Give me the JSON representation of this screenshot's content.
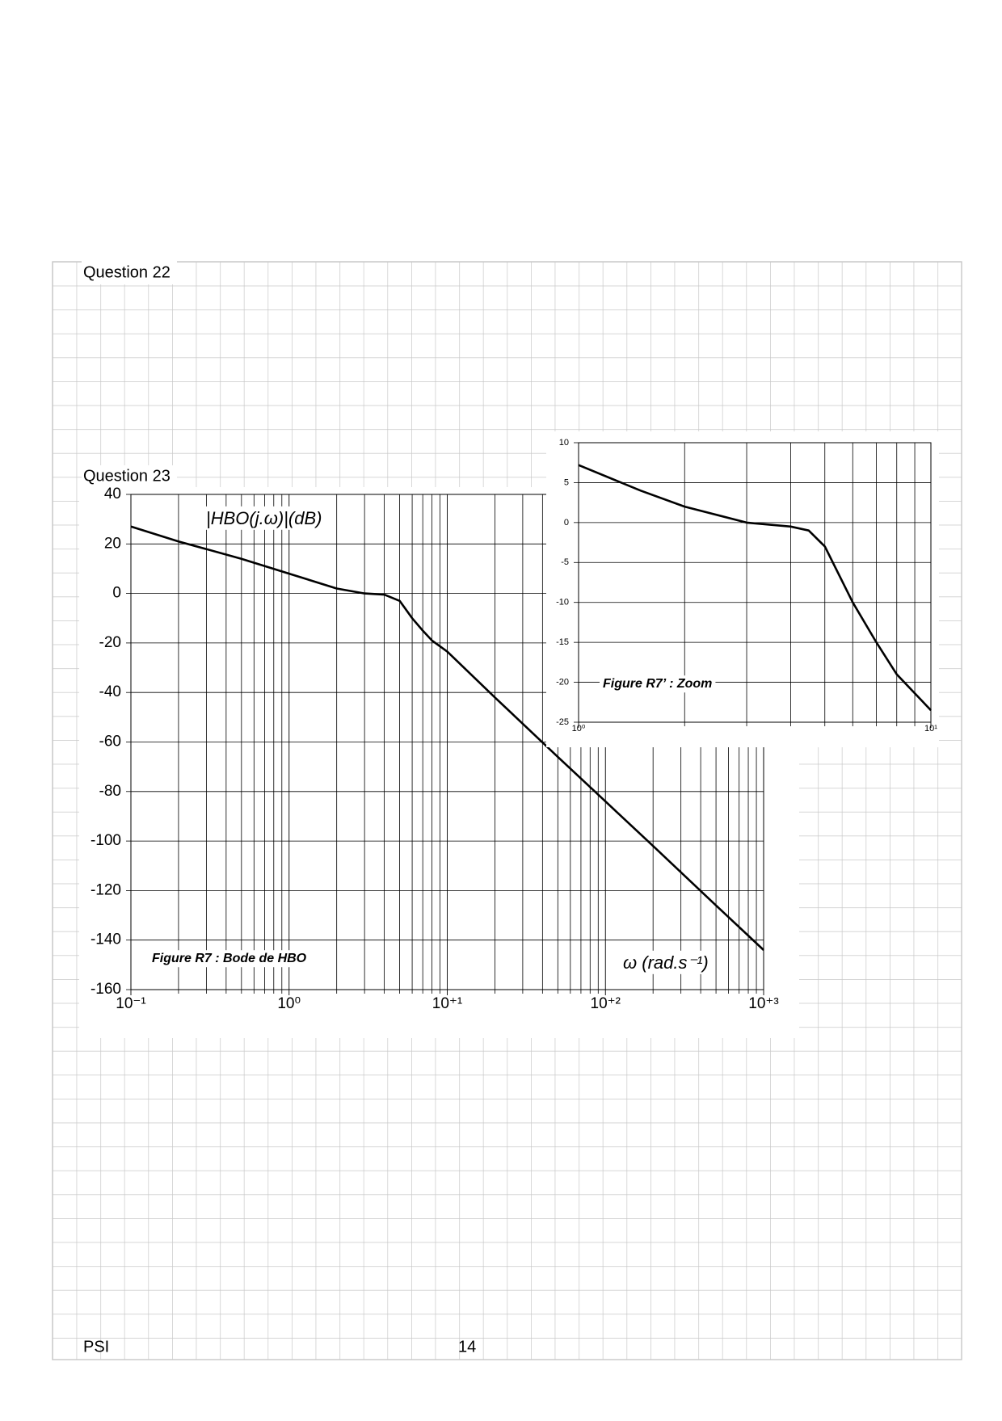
{
  "header": {
    "question_22": "Question 22",
    "question_23": "Question 23"
  },
  "footer": {
    "left": "PSI",
    "page": "14"
  },
  "chart_data": [
    {
      "type": "line",
      "title": "Figure R7 : Bode de HBO",
      "ylabel": "|HBO(j.ω)|(dB)",
      "xlabel": "ω (rad.s⁻¹)",
      "xlog": true,
      "xlim": [
        0.1,
        1000
      ],
      "ylim": [
        -160,
        40
      ],
      "xticks": [
        {
          "value": 0.1,
          "label": "10⁻¹"
        },
        {
          "value": 1,
          "label": "10⁰"
        },
        {
          "value": 10,
          "label": "10⁺¹"
        },
        {
          "value": 100,
          "label": "10⁺²"
        },
        {
          "value": 1000,
          "label": "10⁺³"
        }
      ],
      "yticks": [
        -160,
        -140,
        -120,
        -100,
        -80,
        -60,
        -40,
        -20,
        0,
        20,
        40
      ],
      "grid": true,
      "color": "#000000",
      "x": [
        0.1,
        0.2,
        0.5,
        1,
        2,
        3,
        4,
        5,
        6,
        7,
        8,
        10,
        20,
        50,
        100,
        200,
        500,
        1000
      ],
      "values": [
        27,
        21,
        14,
        8,
        2,
        0,
        -0.5,
        -3,
        -10,
        -15,
        -19,
        -23.5,
        -42,
        -66,
        -84,
        -102,
        -126,
        -144
      ]
    },
    {
      "type": "line",
      "title": "Figure R7’ : Zoom",
      "xlog": true,
      "xlim": [
        1,
        10
      ],
      "ylim": [
        -25,
        10
      ],
      "xticks": [
        {
          "value": 1,
          "label": "10⁰"
        },
        {
          "value": 10,
          "label": "10¹"
        }
      ],
      "yticks": [
        -25,
        -20,
        -15,
        -10,
        -5,
        0,
        5,
        10
      ],
      "grid": true,
      "color": "#000000",
      "x": [
        1,
        1.5,
        2,
        3,
        4,
        4.5,
        5,
        6,
        7,
        8,
        10
      ],
      "values": [
        7.2,
        4,
        2,
        0,
        -0.5,
        -1,
        -3,
        -10,
        -15,
        -19,
        -23.5
      ]
    }
  ]
}
